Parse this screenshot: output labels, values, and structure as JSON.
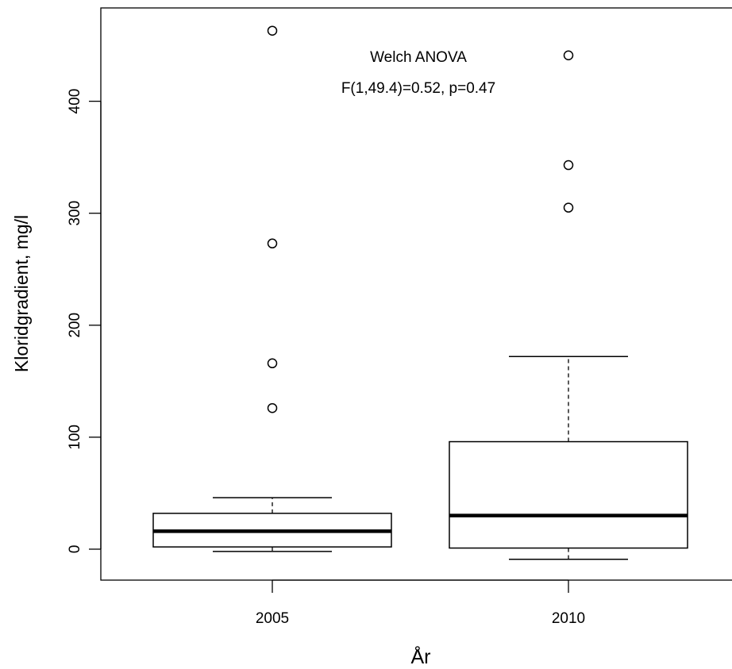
{
  "chart_data": {
    "type": "box",
    "title": "",
    "xlabel": "År",
    "ylabel": "Kloridgradient, mg/l",
    "ylim": [
      -28,
      485
    ],
    "yticks": [
      0,
      100,
      200,
      300,
      400
    ],
    "categories": [
      "2005",
      "2010"
    ],
    "boxes": [
      {
        "category": "2005",
        "whisker_low": -2,
        "q1": 2,
        "median": 16,
        "q3": 32,
        "whisker_high": 46,
        "outliers": [
          126,
          166,
          273,
          463
        ]
      },
      {
        "category": "2010",
        "whisker_low": -9,
        "q1": 1,
        "median": 30,
        "q3": 96,
        "whisker_high": 172,
        "outliers": [
          305,
          343,
          441
        ]
      }
    ],
    "annotations": [
      "Welch ANOVA",
      "F(1,49.4)=0.52, p=0.47"
    ],
    "grid": false,
    "legend": "none",
    "colors": {
      "box_stroke": "#000000",
      "box_fill": "#ffffff",
      "background": "#ffffff"
    }
  }
}
